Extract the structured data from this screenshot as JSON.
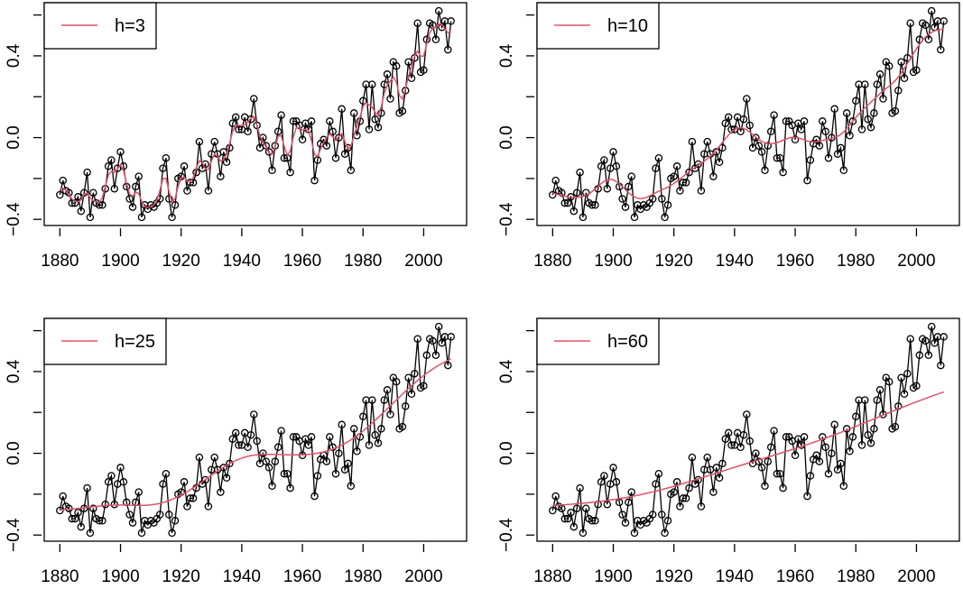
{
  "chart_data": {
    "type": "line",
    "layout": "2x2 grid",
    "smoother_color": "#DF536B",
    "point_color": "#000000",
    "x": [
      1880,
      1881,
      1882,
      1883,
      1884,
      1885,
      1886,
      1887,
      1888,
      1889,
      1890,
      1891,
      1892,
      1893,
      1894,
      1895,
      1896,
      1897,
      1898,
      1899,
      1900,
      1901,
      1902,
      1903,
      1904,
      1905,
      1906,
      1907,
      1908,
      1909,
      1910,
      1911,
      1912,
      1913,
      1914,
      1915,
      1916,
      1917,
      1918,
      1919,
      1920,
      1921,
      1922,
      1923,
      1924,
      1925,
      1926,
      1927,
      1928,
      1929,
      1930,
      1931,
      1932,
      1933,
      1934,
      1935,
      1936,
      1937,
      1938,
      1939,
      1940,
      1941,
      1942,
      1943,
      1944,
      1945,
      1946,
      1947,
      1948,
      1949,
      1950,
      1951,
      1952,
      1953,
      1954,
      1955,
      1956,
      1957,
      1958,
      1959,
      1960,
      1961,
      1962,
      1963,
      1964,
      1965,
      1966,
      1967,
      1968,
      1969,
      1970,
      1971,
      1972,
      1973,
      1974,
      1975,
      1976,
      1977,
      1978,
      1979,
      1980,
      1981,
      1982,
      1983,
      1984,
      1985,
      1986,
      1987,
      1988,
      1989,
      1990,
      1991,
      1992,
      1993,
      1994,
      1995,
      1996,
      1997,
      1998,
      1999,
      2000,
      2001,
      2002,
      2003,
      2004,
      2005,
      2006,
      2007,
      2008,
      2009
    ],
    "y": [
      -0.28,
      -0.21,
      -0.26,
      -0.27,
      -0.32,
      -0.32,
      -0.29,
      -0.36,
      -0.27,
      -0.17,
      -0.39,
      -0.27,
      -0.32,
      -0.33,
      -0.33,
      -0.25,
      -0.14,
      -0.11,
      -0.25,
      -0.15,
      -0.07,
      -0.14,
      -0.24,
      -0.3,
      -0.34,
      -0.24,
      -0.19,
      -0.39,
      -0.33,
      -0.35,
      -0.33,
      -0.34,
      -0.32,
      -0.3,
      -0.15,
      -0.1,
      -0.3,
      -0.39,
      -0.33,
      -0.2,
      -0.19,
      -0.14,
      -0.26,
      -0.22,
      -0.22,
      -0.17,
      -0.02,
      -0.15,
      -0.13,
      -0.26,
      -0.08,
      -0.02,
      -0.08,
      -0.19,
      -0.07,
      -0.12,
      -0.05,
      0.07,
      0.1,
      0.04,
      0.04,
      0.1,
      0.03,
      0.09,
      0.19,
      0.06,
      -0.05,
      0.0,
      -0.04,
      -0.07,
      -0.16,
      -0.04,
      0.03,
      0.11,
      -0.1,
      -0.1,
      -0.17,
      0.08,
      0.08,
      0.06,
      -0.01,
      0.07,
      0.04,
      0.08,
      -0.21,
      -0.11,
      -0.03,
      -0.01,
      -0.04,
      0.08,
      0.03,
      -0.1,
      0.0,
      0.14,
      -0.08,
      -0.05,
      -0.16,
      0.12,
      0.01,
      0.08,
      0.18,
      0.26,
      0.04,
      0.26,
      0.09,
      0.05,
      0.12,
      0.26,
      0.31,
      0.19,
      0.37,
      0.35,
      0.12,
      0.13,
      0.23,
      0.37,
      0.29,
      0.39,
      0.56,
      0.32,
      0.33,
      0.48,
      0.56,
      0.55,
      0.48,
      0.62,
      0.54,
      0.57,
      0.43,
      0.57
    ],
    "xlim": [
      1874.84,
      2014.16
    ],
    "ylim": [
      -0.43,
      0.66
    ],
    "x_ticks": [
      "1880",
      "1900",
      "1920",
      "1940",
      "1960",
      "1980",
      "2000"
    ],
    "y_ticks": [
      -0.4,
      -0.2,
      0.0,
      0.2,
      0.4,
      0.6
    ],
    "y_tick_labels": [
      "-0.4",
      "0.0",
      "0.4"
    ],
    "grid": false,
    "panels": [
      {
        "legend": "h=3",
        "bandwidth": 3,
        "legend_position": "top-left"
      },
      {
        "legend": "h=10",
        "bandwidth": 10,
        "legend_position": "top-left"
      },
      {
        "legend": "h=25",
        "bandwidth": 25,
        "legend_position": "top-left"
      },
      {
        "legend": "h=60",
        "bandwidth": 60,
        "legend_position": "top-left"
      }
    ]
  }
}
